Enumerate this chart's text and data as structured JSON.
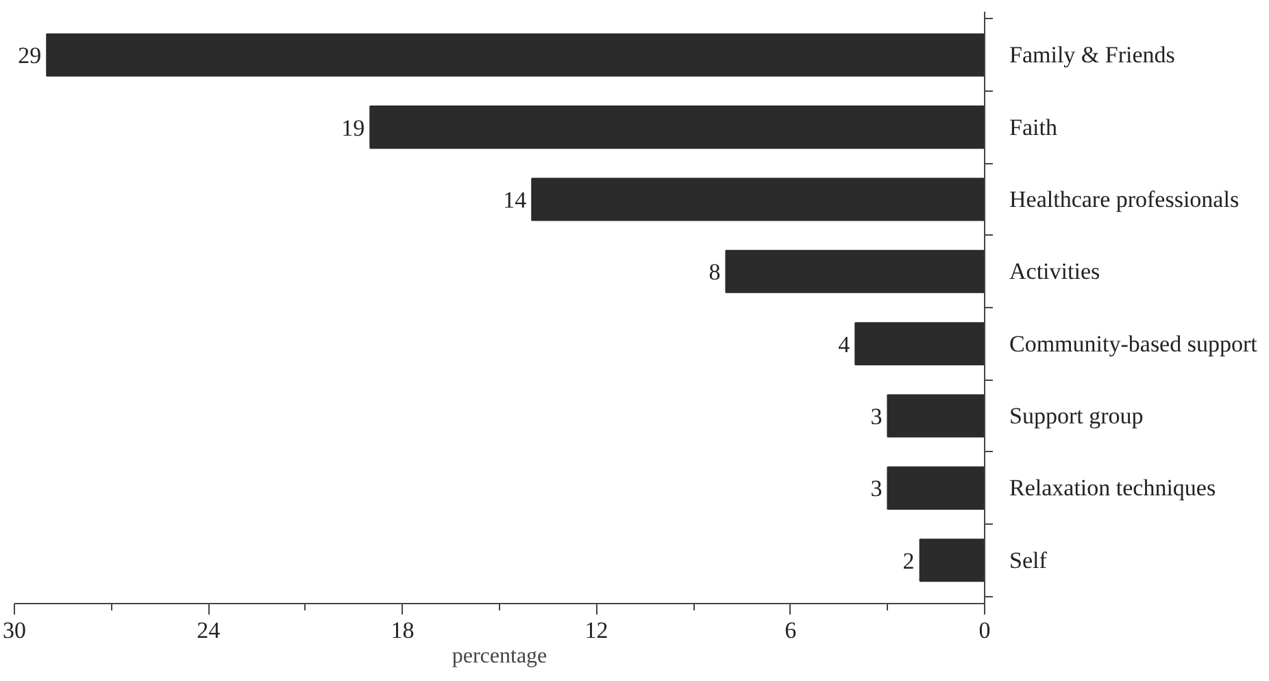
{
  "chart_data": {
    "type": "bar",
    "orientation": "horizontal",
    "xlabel": "percentage",
    "categories": [
      "Family & Friends",
      "Faith",
      "Healthcare professionals",
      "Activities",
      "Community-based support",
      "Support group",
      "Relaxation techniques",
      "Self"
    ],
    "values": [
      29,
      19,
      14,
      8,
      4,
      3,
      3,
      2
    ],
    "color": "#2b2b2b",
    "xlim": [
      30,
      0
    ],
    "xticks": [
      30,
      24,
      18,
      12,
      6,
      0
    ],
    "data_labels": true,
    "grid": false
  }
}
